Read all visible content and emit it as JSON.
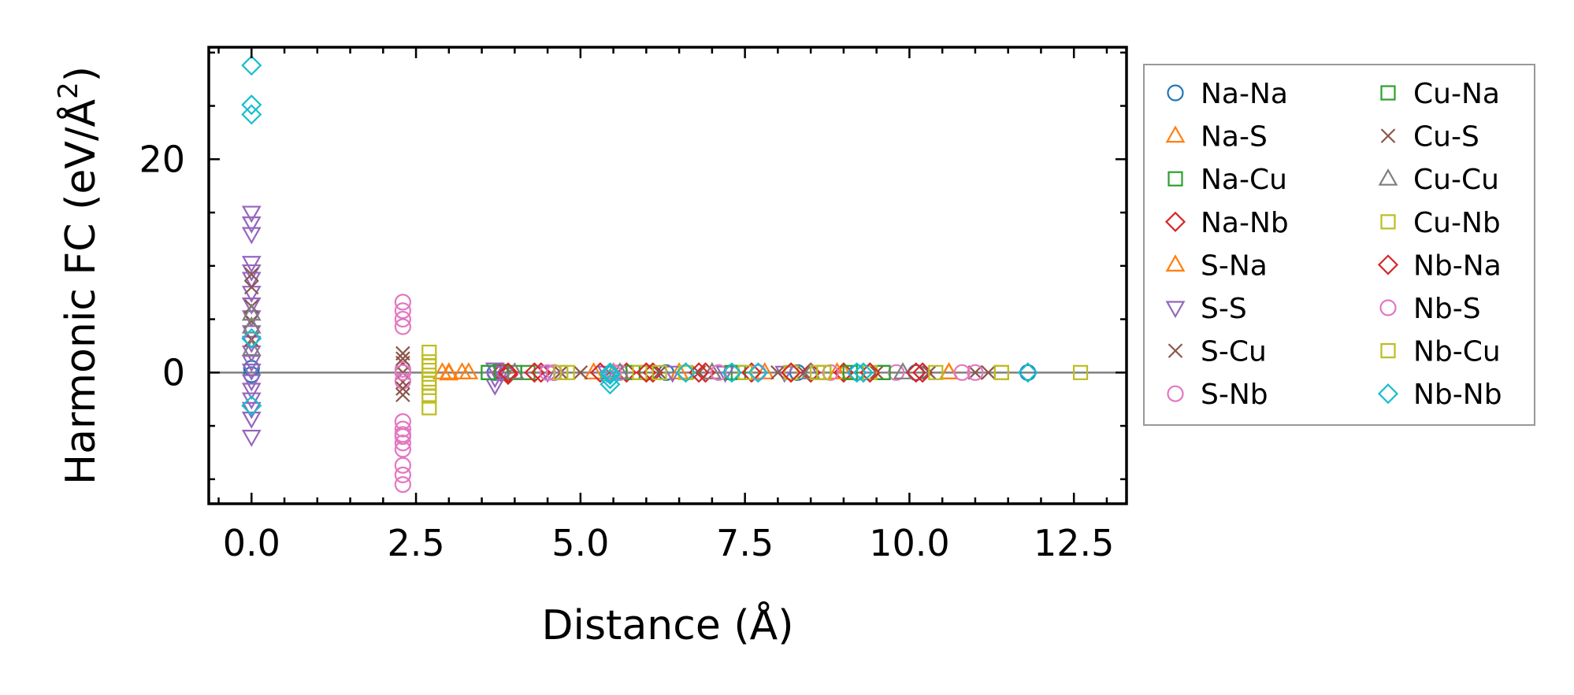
{
  "chart_data": {
    "type": "scatter",
    "xlabel": "Distance (Å)",
    "ylabel": "Harmonic FC (eV/Å²)",
    "ylabel_main": "Harmonic FC (eV/Å",
    "ylabel_sup": "2",
    "ylabel_end": ")",
    "xlim": [
      -0.65,
      13.3
    ],
    "ylim": [
      -12.3,
      30.5
    ],
    "xticks": [
      0.0,
      2.5,
      5.0,
      7.5,
      10.0,
      12.5
    ],
    "xtick_labels": [
      "0.0",
      "2.5",
      "5.0",
      "7.5",
      "10.0",
      "12.5"
    ],
    "yticks": [
      0,
      20
    ],
    "ytick_labels": [
      "0",
      "20"
    ],
    "zero_line": true,
    "grid": false,
    "legend_position": "outside-right",
    "series": [
      {
        "name": "Na-Na",
        "color": "#1f77b4",
        "marker": "circle",
        "points": [
          [
            0.0,
            0.4
          ],
          [
            0.0,
            -0.2
          ],
          [
            3.7,
            0.0
          ],
          [
            4.6,
            0.0
          ],
          [
            6.3,
            0.0
          ],
          [
            7.3,
            0.0
          ],
          [
            8.3,
            0.0
          ],
          [
            9.2,
            0.0
          ],
          [
            10.1,
            0.0
          ],
          [
            11.8,
            0.0
          ]
        ]
      },
      {
        "name": "Na-S",
        "color": "#ff7f0e",
        "marker": "triangle-up",
        "points": [
          [
            2.9,
            0.0
          ],
          [
            3.0,
            -0.1
          ],
          [
            3.2,
            0.0
          ],
          [
            5.2,
            0.0
          ],
          [
            6.5,
            0.0
          ],
          [
            7.8,
            0.0
          ],
          [
            9.0,
            0.0
          ],
          [
            10.6,
            0.0
          ]
        ]
      },
      {
        "name": "Na-Cu",
        "color": "#2ca02c",
        "marker": "square",
        "points": [
          [
            3.6,
            0.0
          ],
          [
            3.8,
            0.1
          ],
          [
            4.2,
            0.0
          ],
          [
            6.0,
            0.0
          ],
          [
            7.4,
            0.0
          ],
          [
            8.7,
            0.0
          ],
          [
            9.6,
            0.0
          ]
        ]
      },
      {
        "name": "Na-Nb",
        "color": "#d62728",
        "marker": "diamond",
        "points": [
          [
            3.8,
            0.0
          ],
          [
            3.9,
            -0.2
          ],
          [
            4.4,
            0.0
          ],
          [
            5.7,
            0.0
          ],
          [
            6.1,
            0.0
          ],
          [
            6.9,
            0.0
          ],
          [
            7.6,
            0.0
          ],
          [
            8.5,
            0.0
          ],
          [
            9.0,
            0.0
          ],
          [
            10.2,
            0.0
          ]
        ]
      },
      {
        "name": "S-Na",
        "color": "#ff7f0e",
        "marker": "triangle-up",
        "points": [
          [
            3.0,
            0.0
          ],
          [
            3.3,
            0.0
          ],
          [
            5.5,
            0.0
          ],
          [
            7.0,
            0.0
          ],
          [
            8.9,
            0.0
          ],
          [
            10.6,
            0.0
          ]
        ]
      },
      {
        "name": "S-S",
        "color": "#9467bd",
        "marker": "triangle-down",
        "points": [
          [
            0.0,
            15.0
          ],
          [
            0.0,
            14.0
          ],
          [
            0.0,
            13.0
          ],
          [
            0.0,
            10.3
          ],
          [
            0.0,
            9.5
          ],
          [
            0.0,
            8.8
          ],
          [
            0.0,
            7.5
          ],
          [
            0.0,
            6.4
          ],
          [
            0.0,
            5.2
          ],
          [
            0.0,
            3.8
          ],
          [
            0.0,
            2.8
          ],
          [
            0.0,
            1.9
          ],
          [
            0.0,
            1.0
          ],
          [
            0.0,
            0.2
          ],
          [
            0.0,
            -0.8
          ],
          [
            0.0,
            -1.6
          ],
          [
            0.0,
            -2.5
          ],
          [
            0.0,
            -3.4
          ],
          [
            0.0,
            -4.3
          ],
          [
            0.0,
            -6.0
          ],
          [
            3.7,
            0.3
          ],
          [
            3.7,
            -0.5
          ],
          [
            3.7,
            -1.2
          ],
          [
            3.8,
            0.0
          ],
          [
            4.5,
            0.0
          ],
          [
            5.4,
            0.0
          ],
          [
            6.4,
            0.0
          ],
          [
            7.2,
            0.0
          ],
          [
            8.1,
            0.0
          ]
        ]
      },
      {
        "name": "S-Cu",
        "color": "#8c564b",
        "marker": "x",
        "points": [
          [
            0.0,
            9.2
          ],
          [
            0.0,
            8.0
          ],
          [
            0.0,
            6.2
          ],
          [
            0.0,
            4.8
          ],
          [
            0.0,
            3.1
          ],
          [
            2.3,
            1.8
          ],
          [
            2.3,
            0.9
          ],
          [
            2.3,
            0.0
          ],
          [
            2.3,
            -0.9
          ],
          [
            2.3,
            -2.1
          ],
          [
            4.7,
            0.0
          ],
          [
            6.2,
            0.0
          ],
          [
            8.0,
            0.0
          ],
          [
            9.5,
            0.0
          ],
          [
            11.0,
            0.0
          ]
        ]
      },
      {
        "name": "S-Nb",
        "color": "#e377c2",
        "marker": "circle",
        "points": [
          [
            2.3,
            6.6
          ],
          [
            2.3,
            5.8
          ],
          [
            2.3,
            5.0
          ],
          [
            2.3,
            4.3
          ],
          [
            2.3,
            0.3
          ],
          [
            2.3,
            -0.8
          ],
          [
            2.3,
            -4.6
          ],
          [
            2.3,
            -5.3
          ],
          [
            2.3,
            -6.0
          ],
          [
            2.3,
            -6.6
          ],
          [
            2.3,
            -7.2
          ],
          [
            2.3,
            -8.7
          ],
          [
            2.3,
            -9.6
          ],
          [
            2.3,
            -10.5
          ],
          [
            4.6,
            0.0
          ],
          [
            5.6,
            0.0
          ],
          [
            6.6,
            0.0
          ],
          [
            7.7,
            0.0
          ],
          [
            8.8,
            0.0
          ],
          [
            9.8,
            0.0
          ],
          [
            11.0,
            0.0
          ]
        ]
      },
      {
        "name": "Cu-Na",
        "color": "#2ca02c",
        "marker": "square",
        "points": [
          [
            3.6,
            0.0
          ],
          [
            4.0,
            0.0
          ],
          [
            5.8,
            0.0
          ],
          [
            7.3,
            0.0
          ],
          [
            9.1,
            0.0
          ],
          [
            9.6,
            0.0
          ]
        ]
      },
      {
        "name": "Cu-S",
        "color": "#8c564b",
        "marker": "x",
        "points": [
          [
            2.3,
            1.3
          ],
          [
            2.3,
            -1.5
          ],
          [
            5.0,
            0.0
          ],
          [
            6.8,
            0.0
          ],
          [
            8.4,
            0.0
          ],
          [
            10.3,
            0.0
          ],
          [
            11.2,
            0.0
          ]
        ]
      },
      {
        "name": "Cu-Cu",
        "color": "#7f7f7f",
        "marker": "triangle-up",
        "points": [
          [
            0.0,
            5.5
          ],
          [
            0.0,
            4.3
          ],
          [
            0.0,
            2.2
          ],
          [
            4.0,
            0.0
          ],
          [
            5.6,
            0.0
          ],
          [
            7.0,
            0.0
          ],
          [
            8.5,
            0.0
          ],
          [
            9.9,
            0.0
          ]
        ]
      },
      {
        "name": "Cu-Nb",
        "color": "#bcbd22",
        "marker": "square",
        "points": [
          [
            2.7,
            1.9
          ],
          [
            2.7,
            1.0
          ],
          [
            2.7,
            0.2
          ],
          [
            2.7,
            -0.6
          ],
          [
            2.7,
            -1.4
          ],
          [
            2.7,
            -2.2
          ],
          [
            2.7,
            -3.3
          ],
          [
            4.8,
            0.0
          ],
          [
            5.9,
            0.0
          ],
          [
            6.6,
            0.0
          ],
          [
            7.5,
            0.0
          ],
          [
            8.2,
            0.0
          ],
          [
            8.7,
            0.0
          ],
          [
            9.4,
            0.0
          ],
          [
            10.4,
            0.0
          ],
          [
            11.4,
            0.0
          ]
        ]
      },
      {
        "name": "Nb-Na",
        "color": "#d62728",
        "marker": "diamond",
        "points": [
          [
            3.9,
            0.0
          ],
          [
            4.3,
            0.0
          ],
          [
            5.3,
            0.0
          ],
          [
            6.0,
            0.0
          ],
          [
            6.8,
            0.0
          ],
          [
            8.2,
            0.0
          ],
          [
            9.4,
            0.0
          ],
          [
            10.1,
            0.0
          ]
        ]
      },
      {
        "name": "Nb-S",
        "color": "#e377c2",
        "marker": "circle",
        "points": [
          [
            2.3,
            0.0
          ],
          [
            2.3,
            -5.8
          ],
          [
            4.5,
            0.0
          ],
          [
            5.5,
            0.0
          ],
          [
            7.1,
            0.0
          ],
          [
            10.8,
            0.0
          ]
        ]
      },
      {
        "name": "Nb-Cu",
        "color": "#bcbd22",
        "marker": "square",
        "points": [
          [
            2.7,
            0.6
          ],
          [
            2.7,
            -1.0
          ],
          [
            4.7,
            0.0
          ],
          [
            6.2,
            0.0
          ],
          [
            8.6,
            0.0
          ],
          [
            11.4,
            0.0
          ],
          [
            12.6,
            0.0
          ]
        ]
      },
      {
        "name": "Nb-Nb",
        "color": "#17becf",
        "marker": "diamond",
        "points": [
          [
            0.0,
            28.8
          ],
          [
            0.0,
            25.1
          ],
          [
            0.0,
            24.2
          ],
          [
            0.0,
            3.2
          ],
          [
            0.0,
            -3.1
          ],
          [
            5.45,
            -0.2
          ],
          [
            5.45,
            0.0
          ],
          [
            5.45,
            -0.6
          ],
          [
            5.45,
            -1.1
          ],
          [
            6.6,
            0.0
          ],
          [
            7.3,
            0.0
          ],
          [
            7.7,
            0.0
          ],
          [
            9.2,
            0.0
          ],
          [
            9.3,
            0.0
          ],
          [
            11.8,
            0.0
          ]
        ]
      }
    ]
  }
}
